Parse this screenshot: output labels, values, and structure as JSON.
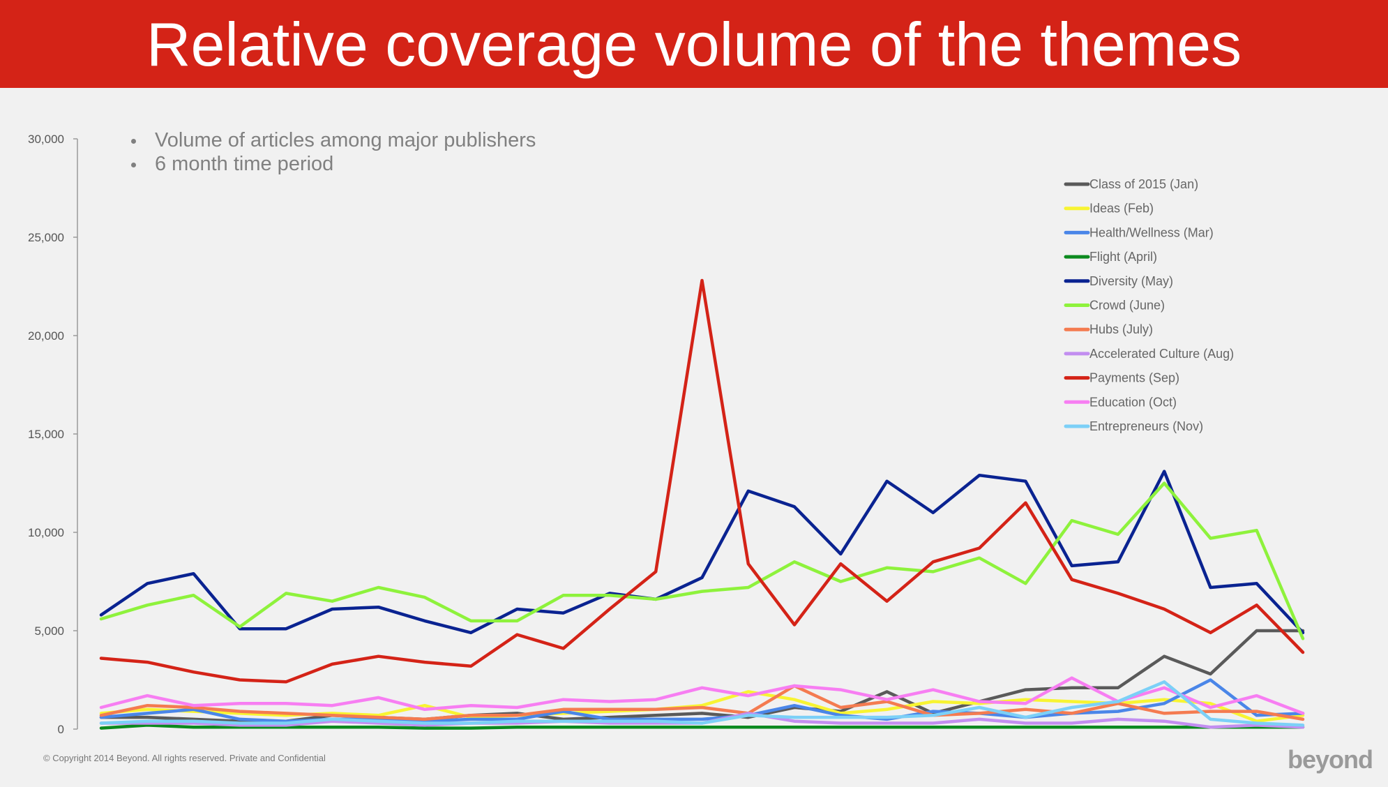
{
  "header": {
    "title": "Relative coverage volume of the themes"
  },
  "notes": {
    "bullets": [
      "Volume of articles among major publishers",
      "6 month time period"
    ]
  },
  "footer": {
    "copyright": "© Copyright 2014 Beyond. All rights reserved. Private and Confidential",
    "brand": "beyond"
  },
  "chart_data": {
    "type": "line",
    "title": "",
    "xlabel": "",
    "ylabel": "",
    "ylim": [
      0,
      30000
    ],
    "yticks": [
      0,
      5000,
      10000,
      15000,
      20000,
      25000,
      30000
    ],
    "ytick_labels": [
      "0",
      "5,000",
      "10,000",
      "15,000",
      "20,000",
      "25,000",
      "30,000"
    ],
    "x": [
      1,
      2,
      3,
      4,
      5,
      6,
      7,
      8,
      9,
      10,
      11,
      12,
      13,
      14,
      15,
      16,
      17,
      18,
      19,
      20,
      21,
      22,
      23,
      24,
      25,
      26,
      27
    ],
    "grid": false,
    "legend_position": "top-right",
    "series": [
      {
        "name": "Class of 2015 (Jan)",
        "color": "#5a5a5a",
        "values": [
          600,
          600,
          500,
          400,
          400,
          700,
          600,
          500,
          700,
          800,
          500,
          600,
          700,
          800,
          600,
          1100,
          900,
          1900,
          800,
          1400,
          2000,
          2100,
          2100,
          3700,
          2800,
          5000,
          5000
        ]
      },
      {
        "name": "Ideas (Feb)",
        "color": "#f8f432",
        "values": [
          800,
          1000,
          900,
          800,
          700,
          800,
          700,
          1200,
          600,
          700,
          800,
          900,
          1000,
          1200,
          1900,
          1500,
          800,
          1000,
          1400,
          1300,
          1500,
          1400,
          1300,
          1500,
          1300,
          400,
          700
        ]
      },
      {
        "name": "Health/Wellness (Mar)",
        "color": "#4a86e8",
        "values": [
          600,
          800,
          1000,
          500,
          400,
          500,
          500,
          400,
          500,
          500,
          900,
          500,
          500,
          500,
          700,
          1200,
          700,
          500,
          900,
          800,
          600,
          800,
          900,
          1300,
          2500,
          700,
          800
        ]
      },
      {
        "name": "Flight (April)",
        "color": "#0c8a1f",
        "values": [
          50,
          200,
          100,
          100,
          100,
          100,
          100,
          50,
          50,
          100,
          100,
          100,
          100,
          100,
          100,
          100,
          100,
          100,
          100,
          100,
          100,
          100,
          100,
          100,
          100,
          100,
          100
        ]
      },
      {
        "name": "Diversity (May)",
        "color": "#0a2391",
        "values": [
          5800,
          7400,
          7900,
          5100,
          5100,
          6100,
          6200,
          5500,
          4900,
          6100,
          5900,
          6900,
          6600,
          7700,
          12100,
          11300,
          8900,
          12600,
          11000,
          12900,
          12600,
          8300,
          8500,
          13100,
          7200,
          7400,
          4900
        ]
      },
      {
        "name": "Crowd (June)",
        "color": "#8ef23c",
        "values": [
          5600,
          6300,
          6800,
          5200,
          6900,
          6500,
          7200,
          6700,
          5500,
          5500,
          6800,
          6800,
          6600,
          7000,
          7200,
          8500,
          7500,
          8200,
          8000,
          8700,
          7400,
          10600,
          9900,
          12500,
          9700,
          10100,
          4600
        ]
      },
      {
        "name": "Hubs (July)",
        "color": "#f47b50",
        "values": [
          700,
          1200,
          1100,
          900,
          800,
          700,
          600,
          500,
          700,
          700,
          1000,
          1000,
          1000,
          1100,
          800,
          2200,
          1100,
          1400,
          700,
          800,
          1000,
          800,
          1300,
          800,
          900,
          900,
          500
        ]
      },
      {
        "name": "Accelerated Culture (Aug)",
        "color": "#c28ef0",
        "values": [
          300,
          300,
          300,
          200,
          200,
          400,
          300,
          200,
          300,
          300,
          400,
          300,
          300,
          300,
          800,
          400,
          300,
          300,
          300,
          500,
          300,
          300,
          500,
          400,
          100,
          200,
          100
        ]
      },
      {
        "name": "Payments (Sep)",
        "color": "#d42317",
        "values": [
          3600,
          3400,
          2900,
          2500,
          2400,
          3300,
          3700,
          3400,
          3200,
          4800,
          4100,
          6100,
          8000,
          22800,
          8400,
          5300,
          8400,
          6500,
          8500,
          9200,
          11500,
          7600,
          6900,
          6100,
          4900,
          6300,
          3900
        ]
      },
      {
        "name": "Education (Oct)",
        "color": "#f77ef2",
        "values": [
          1100,
          1700,
          1200,
          1300,
          1300,
          1200,
          1600,
          1000,
          1200,
          1100,
          1500,
          1400,
          1500,
          2100,
          1700,
          2200,
          2000,
          1500,
          2000,
          1400,
          1300,
          2600,
          1400,
          2100,
          1100,
          1700,
          800
        ]
      },
      {
        "name": "Entrepreneurs (Nov)",
        "color": "#7cd0f7",
        "values": [
          300,
          400,
          400,
          300,
          300,
          500,
          400,
          300,
          300,
          400,
          400,
          400,
          400,
          300,
          700,
          600,
          600,
          600,
          700,
          1100,
          600,
          1100,
          1400,
          2400,
          500,
          300,
          200
        ]
      }
    ]
  }
}
